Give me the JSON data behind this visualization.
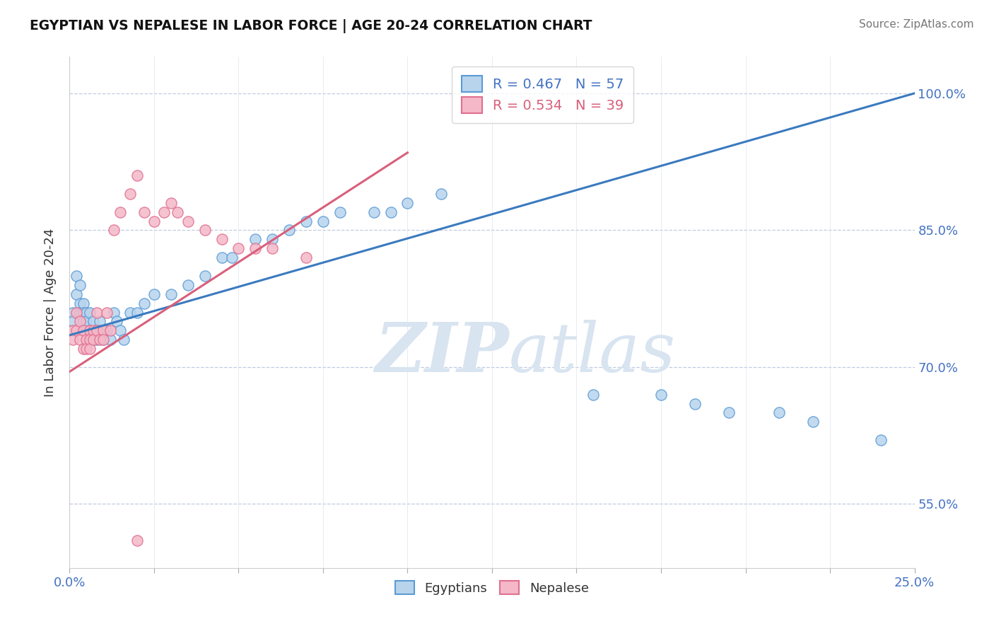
{
  "title": "EGYPTIAN VS NEPALESE IN LABOR FORCE | AGE 20-24 CORRELATION CHART",
  "source": "Source: ZipAtlas.com",
  "ylabel": "In Labor Force | Age 20-24",
  "xlim": [
    0.0,
    0.25
  ],
  "ylim": [
    0.48,
    1.04
  ],
  "xticks": [
    0.0,
    0.025,
    0.05,
    0.075,
    0.1,
    0.125,
    0.15,
    0.175,
    0.2,
    0.225,
    0.25
  ],
  "ytick_positions": [
    0.55,
    0.7,
    0.85,
    1.0
  ],
  "ytick_labels": [
    "55.0%",
    "70.0%",
    "85.0%",
    "100.0%"
  ],
  "egyptian_fill_color": "#b8d4ed",
  "egyptian_edge_color": "#5b9bd5",
  "nepalese_fill_color": "#f4b8c8",
  "nepalese_edge_color": "#e07090",
  "egyptian_line_color": "#3a7abf",
  "nepalese_line_color": "#d95f7a",
  "R_egyptian": 0.467,
  "N_egyptian": 57,
  "R_nepalese": 0.534,
  "N_nepalese": 39,
  "watermark_zip": "ZIP",
  "watermark_atlas": "atlas",
  "watermark_color": "#d8e4f0",
  "egyptian_x": [
    0.001,
    0.001,
    0.002,
    0.002,
    0.003,
    0.003,
    0.003,
    0.004,
    0.004,
    0.004,
    0.005,
    0.005,
    0.005,
    0.006,
    0.006,
    0.006,
    0.007,
    0.007,
    0.007,
    0.008,
    0.008,
    0.009,
    0.009,
    0.01,
    0.01,
    0.011,
    0.012,
    0.013,
    0.014,
    0.015,
    0.016,
    0.018,
    0.02,
    0.022,
    0.025,
    0.03,
    0.035,
    0.04,
    0.045,
    0.048,
    0.055,
    0.06,
    0.065,
    0.07,
    0.075,
    0.08,
    0.09,
    0.095,
    0.1,
    0.11,
    0.155,
    0.175,
    0.185,
    0.195,
    0.21,
    0.22,
    0.24
  ],
  "egyptian_y": [
    0.76,
    0.75,
    0.8,
    0.78,
    0.77,
    0.76,
    0.79,
    0.75,
    0.77,
    0.76,
    0.74,
    0.76,
    0.75,
    0.74,
    0.73,
    0.76,
    0.74,
    0.73,
    0.75,
    0.74,
    0.73,
    0.75,
    0.74,
    0.74,
    0.73,
    0.74,
    0.73,
    0.76,
    0.75,
    0.74,
    0.73,
    0.76,
    0.76,
    0.77,
    0.78,
    0.78,
    0.79,
    0.8,
    0.82,
    0.82,
    0.84,
    0.84,
    0.85,
    0.86,
    0.86,
    0.87,
    0.87,
    0.87,
    0.88,
    0.89,
    0.67,
    0.67,
    0.66,
    0.65,
    0.65,
    0.64,
    0.62
  ],
  "nepalese_x": [
    0.001,
    0.001,
    0.002,
    0.002,
    0.003,
    0.003,
    0.004,
    0.004,
    0.005,
    0.005,
    0.006,
    0.006,
    0.006,
    0.007,
    0.007,
    0.008,
    0.008,
    0.009,
    0.01,
    0.01,
    0.011,
    0.012,
    0.013,
    0.015,
    0.018,
    0.02,
    0.022,
    0.025,
    0.028,
    0.03,
    0.032,
    0.035,
    0.04,
    0.045,
    0.05,
    0.055,
    0.06,
    0.07,
    0.02
  ],
  "nepalese_y": [
    0.74,
    0.73,
    0.76,
    0.74,
    0.73,
    0.75,
    0.72,
    0.74,
    0.73,
    0.72,
    0.74,
    0.73,
    0.72,
    0.74,
    0.73,
    0.76,
    0.74,
    0.73,
    0.74,
    0.73,
    0.76,
    0.74,
    0.85,
    0.87,
    0.89,
    0.91,
    0.87,
    0.86,
    0.87,
    0.88,
    0.87,
    0.86,
    0.85,
    0.84,
    0.83,
    0.83,
    0.83,
    0.82,
    0.51
  ],
  "egyptian_line_x": [
    0.0,
    0.25
  ],
  "egyptian_line_y": [
    0.735,
    1.0
  ],
  "nepalese_line_x": [
    0.0,
    0.1
  ],
  "nepalese_line_y": [
    0.695,
    0.935
  ]
}
